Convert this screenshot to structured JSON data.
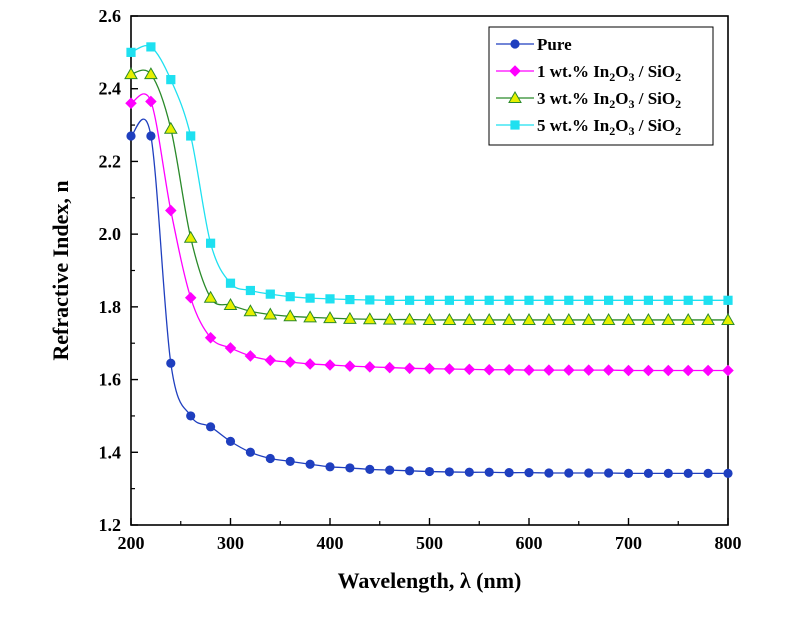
{
  "chart_data": {
    "type": "line",
    "title": "",
    "xlabel": "Wavelength, λ (nm)",
    "ylabel": "Refractive Index, n",
    "xlim": [
      200,
      800
    ],
    "ylim": [
      1.2,
      2.6
    ],
    "x_ticks": [
      "200",
      "300",
      "400",
      "500",
      "600",
      "700",
      "800"
    ],
    "y_ticks": [
      "1.2",
      "1.4",
      "1.6",
      "1.8",
      "2.0",
      "2.2",
      "2.4",
      "2.6"
    ],
    "grid": false,
    "legend_position": "top-right",
    "x": [
      200,
      220,
      240,
      260,
      280,
      300,
      320,
      340,
      360,
      380,
      400,
      420,
      440,
      460,
      480,
      500,
      520,
      540,
      560,
      580,
      600,
      620,
      640,
      660,
      680,
      700,
      720,
      740,
      760,
      780,
      800
    ],
    "series": [
      {
        "name": "Pure",
        "name_parts": [
          {
            "t": "Pure"
          }
        ],
        "color": "#1f3fbf",
        "marker": "circle",
        "values": [
          2.27,
          2.27,
          1.645,
          1.5,
          1.47,
          1.43,
          1.4,
          1.383,
          1.375,
          1.367,
          1.36,
          1.357,
          1.353,
          1.351,
          1.349,
          1.347,
          1.346,
          1.345,
          1.345,
          1.344,
          1.344,
          1.343,
          1.343,
          1.343,
          1.343,
          1.342,
          1.342,
          1.342,
          1.342,
          1.342,
          1.342
        ]
      },
      {
        "name": "1 wt.% In2O3 / SiO2",
        "name_parts": [
          {
            "t": "1 wt.% In"
          },
          {
            "t": "2",
            "sub": true
          },
          {
            "t": "O"
          },
          {
            "t": "3",
            "sub": true
          },
          {
            "t": " / SiO"
          },
          {
            "t": "2",
            "sub": true
          }
        ],
        "color": "#ff00ff",
        "marker": "diamond",
        "values": [
          2.36,
          2.365,
          2.065,
          1.825,
          1.715,
          1.687,
          1.665,
          1.653,
          1.648,
          1.643,
          1.64,
          1.637,
          1.635,
          1.633,
          1.631,
          1.63,
          1.629,
          1.628,
          1.627,
          1.627,
          1.626,
          1.626,
          1.626,
          1.626,
          1.626,
          1.625,
          1.625,
          1.625,
          1.625,
          1.625,
          1.625
        ]
      },
      {
        "name": "3 wt.% In2O3 / SiO2",
        "name_parts": [
          {
            "t": "3 wt.% In"
          },
          {
            "t": "2",
            "sub": true
          },
          {
            "t": "O"
          },
          {
            "t": "3",
            "sub": true
          },
          {
            "t": " / SiO"
          },
          {
            "t": "2",
            "sub": true
          }
        ],
        "color": "#2a8a2a",
        "fill": "#e6f000",
        "marker": "triangle",
        "values": [
          2.44,
          2.44,
          2.29,
          1.99,
          1.825,
          1.805,
          1.788,
          1.779,
          1.774,
          1.771,
          1.769,
          1.767,
          1.766,
          1.765,
          1.765,
          1.764,
          1.764,
          1.764,
          1.764,
          1.764,
          1.764,
          1.764,
          1.764,
          1.764,
          1.764,
          1.764,
          1.764,
          1.764,
          1.764,
          1.764,
          1.764
        ]
      },
      {
        "name": "5 wt.% In2O3 / SiO2",
        "name_parts": [
          {
            "t": "5 wt.% In"
          },
          {
            "t": "2",
            "sub": true
          },
          {
            "t": "O"
          },
          {
            "t": "3",
            "sub": true
          },
          {
            "t": " / SiO"
          },
          {
            "t": "2",
            "sub": true
          }
        ],
        "color": "#1ee0f0",
        "marker": "square",
        "values": [
          2.5,
          2.515,
          2.425,
          2.27,
          1.975,
          1.865,
          1.845,
          1.835,
          1.828,
          1.824,
          1.822,
          1.82,
          1.819,
          1.818,
          1.818,
          1.818,
          1.818,
          1.818,
          1.818,
          1.818,
          1.818,
          1.818,
          1.818,
          1.818,
          1.818,
          1.818,
          1.818,
          1.818,
          1.818,
          1.818,
          1.818
        ]
      }
    ]
  }
}
